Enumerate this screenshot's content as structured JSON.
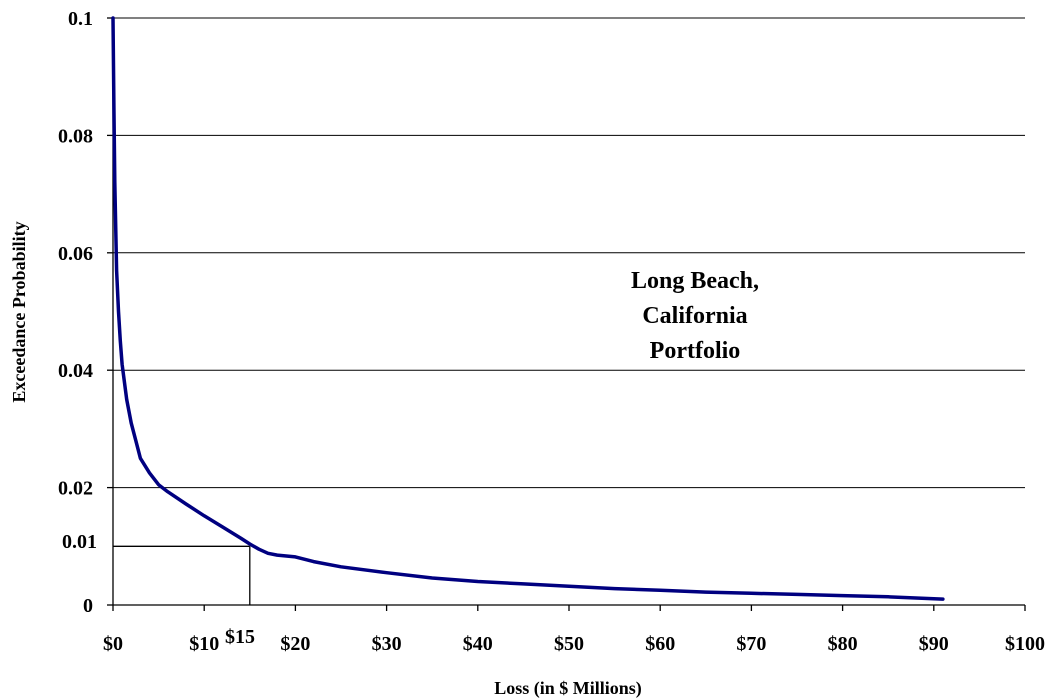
{
  "chart_data": {
    "type": "line",
    "title": "",
    "xlabel": "Loss (in $ Millions)",
    "ylabel": "Exceedance Probability",
    "xlim": [
      0,
      100
    ],
    "ylim": [
      0,
      0.1
    ],
    "grid": {
      "horizontal": true,
      "vertical": false
    },
    "legend": "none",
    "x_ticks": [
      {
        "value": 0,
        "label": "$0"
      },
      {
        "value": 10,
        "label": "$10"
      },
      {
        "value": 20,
        "label": "$20"
      },
      {
        "value": 30,
        "label": "$30"
      },
      {
        "value": 40,
        "label": "$40"
      },
      {
        "value": 50,
        "label": "$50"
      },
      {
        "value": 60,
        "label": "$60"
      },
      {
        "value": 70,
        "label": "$70"
      },
      {
        "value": 80,
        "label": "$80"
      },
      {
        "value": 90,
        "label": "$90"
      },
      {
        "value": 100,
        "label": "$100"
      }
    ],
    "y_ticks": [
      {
        "value": 0,
        "label": "0"
      },
      {
        "value": 0.02,
        "label": "0.02"
      },
      {
        "value": 0.04,
        "label": "0.04"
      },
      {
        "value": 0.06,
        "label": "0.06"
      },
      {
        "value": 0.08,
        "label": "0.08"
      },
      {
        "value": 0.1,
        "label": "0.1"
      }
    ],
    "series": [
      {
        "color": "#000080",
        "x": [
          0,
          0.1,
          0.2,
          0.4,
          0.6,
          0.8,
          1.0,
          1.5,
          2.0,
          2.5,
          3,
          4,
          5,
          6,
          8,
          10,
          12,
          14,
          15,
          16,
          17,
          18,
          20,
          22,
          25,
          30,
          35,
          40,
          45,
          50,
          55,
          60,
          65,
          70,
          75,
          80,
          85,
          91
        ],
        "y": [
          0.1,
          0.085,
          0.072,
          0.057,
          0.05,
          0.045,
          0.041,
          0.035,
          0.031,
          0.028,
          0.025,
          0.0225,
          0.0205,
          0.0193,
          0.0172,
          0.0152,
          0.0133,
          0.0114,
          0.0104,
          0.0095,
          0.0088,
          0.0085,
          0.0082,
          0.0074,
          0.0065,
          0.0055,
          0.0046,
          0.004,
          0.0036,
          0.0032,
          0.0028,
          0.0025,
          0.0022,
          0.002,
          0.0018,
          0.0016,
          0.0014,
          0.001
        ]
      }
    ],
    "annotations": {
      "portfolio_label": [
        "Long Beach,",
        "California",
        "Portfolio"
      ],
      "marker": {
        "x": 15,
        "y": 0.01,
        "x_label": "$15",
        "y_label": "0.01"
      }
    }
  }
}
